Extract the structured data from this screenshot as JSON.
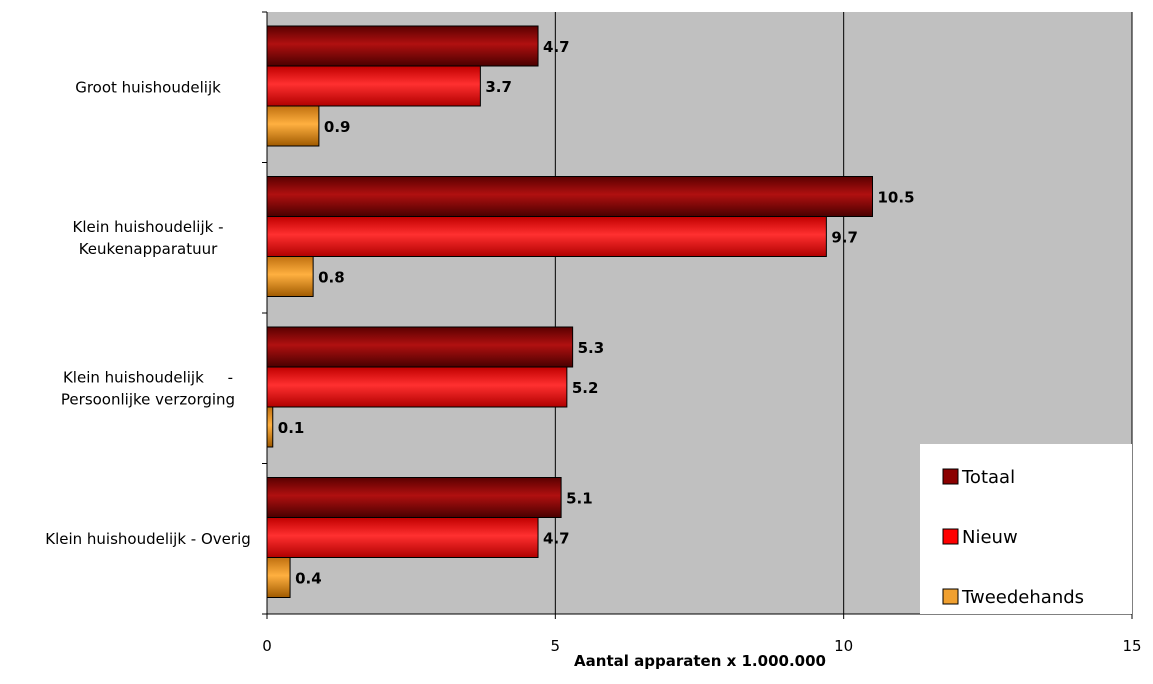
{
  "chart_data": {
    "type": "bar",
    "orientation": "horizontal",
    "categories": [
      [
        "Groot huishoudelijk"
      ],
      [
        "Klein huishoudelijk -",
        "Keukenapparatuur"
      ],
      [
        "Klein huishoudelijk     -",
        "Persoonlijke verzorging"
      ],
      [
        "Klein huishoudelijk - Overig"
      ]
    ],
    "series": [
      {
        "name": "Totaal",
        "values": [
          4.7,
          10.5,
          5.3,
          5.1
        ],
        "labels": [
          "4.7",
          "10.5",
          "5.3",
          "5.1"
        ],
        "color": "#8B0000"
      },
      {
        "name": "Nieuw",
        "values": [
          3.7,
          9.7,
          5.2,
          4.7
        ],
        "labels": [
          "3.7",
          "9.7",
          "5.2",
          "4.7"
        ],
        "color": "#FF0000"
      },
      {
        "name": "Tweedehands",
        "values": [
          0.9,
          0.8,
          0.1,
          0.4
        ],
        "labels": [
          "0.9",
          "0.8",
          "0.1",
          "0.4"
        ],
        "color": "#F0A030"
      }
    ],
    "xlabel": "Aantal apparaten x 1.000.000",
    "ylabel": "",
    "xlim": [
      0,
      15
    ],
    "xticks": [
      "0",
      "5",
      "10",
      "15"
    ],
    "grid": true,
    "legend_position": "bottom-right",
    "plot_background": "#C0C0C0"
  }
}
